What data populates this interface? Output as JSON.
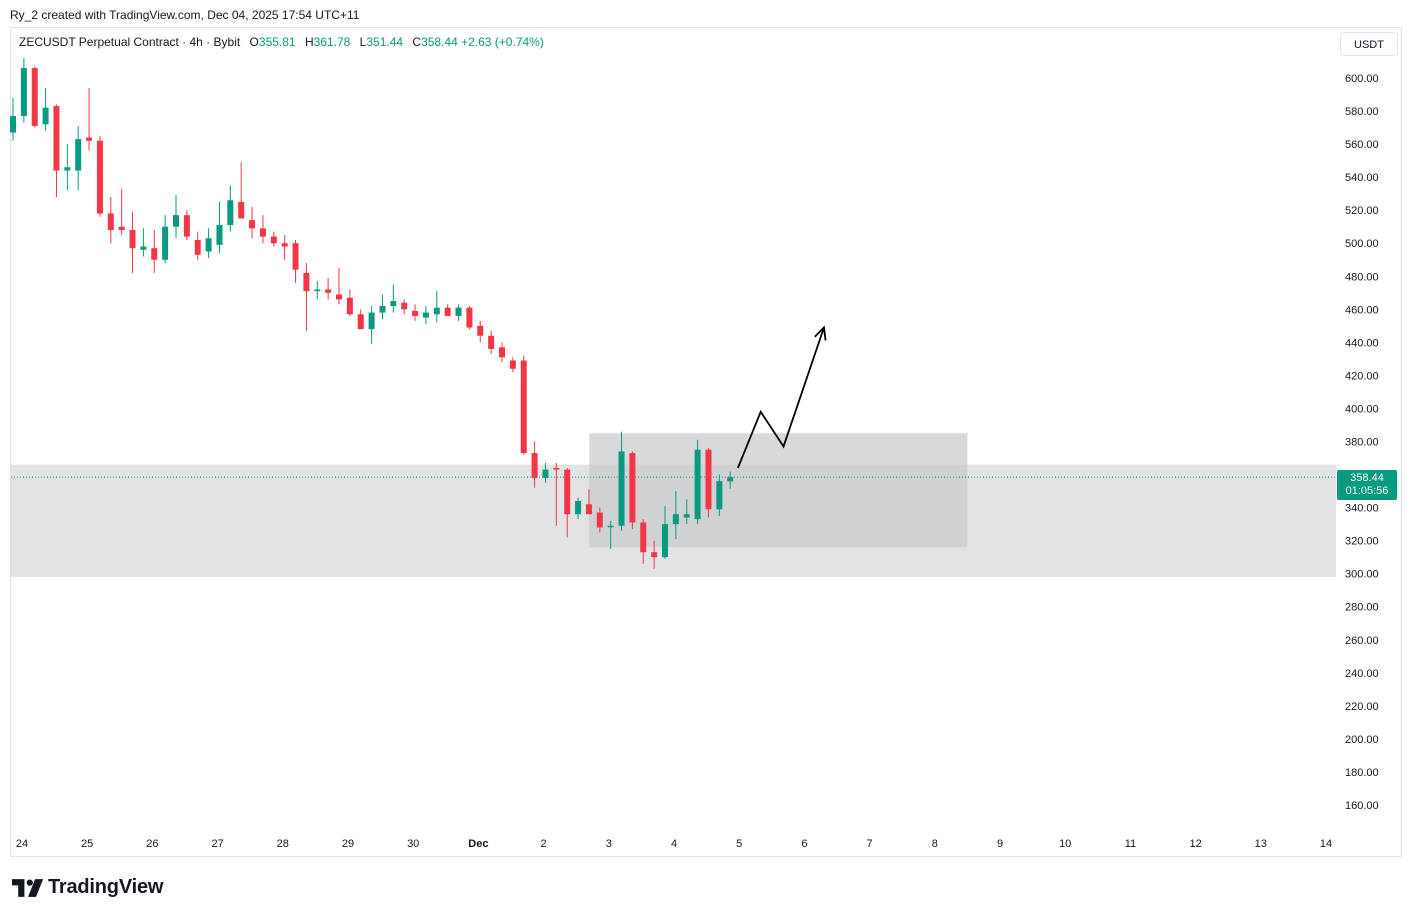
{
  "attribution": "Ry_2 created with TradingView.com, Dec 04, 2025 17:54 UTC+11",
  "brand": "TradingView",
  "legend": {
    "symbol": "ZECUSDT Perpetual Contract · 4h · Bybit",
    "open_label": "O",
    "open": "355.81",
    "high_label": "H",
    "high": "361.78",
    "low_label": "L",
    "low": "351.44",
    "close_label": "C",
    "close": "358.44",
    "change": "+2.63 (+0.74%)"
  },
  "currency": "USDT",
  "last_price": {
    "price": "358.44",
    "countdown": "01:05:56"
  },
  "colors": {
    "up": "#089981",
    "down": "#f23645",
    "zone": "#e2e3e5",
    "box": "#c8c9cc"
  },
  "chart_data": {
    "type": "candlestick",
    "timeframe": "4h",
    "x_ticks": [
      "24",
      "25",
      "26",
      "27",
      "28",
      "29",
      "30",
      "Dec",
      "2",
      "3",
      "4",
      "5",
      "6",
      "7",
      "8",
      "9",
      "10",
      "11",
      "12",
      "13",
      "14"
    ],
    "y_ticks": [
      "160.00",
      "180.00",
      "200.00",
      "220.00",
      "240.00",
      "260.00",
      "280.00",
      "300.00",
      "320.00",
      "340.00",
      "360.00",
      "380.00",
      "400.00",
      "420.00",
      "440.00",
      "460.00",
      "480.00",
      "500.00",
      "520.00",
      "540.00",
      "560.00",
      "580.00",
      "600.00"
    ],
    "ylim": [
      150,
      625
    ],
    "grid": false,
    "last_price": 358.44,
    "candles": [
      {
        "o": 567,
        "h": 588,
        "l": 562,
        "c": 577
      },
      {
        "o": 577,
        "h": 612,
        "l": 573,
        "c": 606
      },
      {
        "o": 606,
        "h": 607,
        "l": 570,
        "c": 571
      },
      {
        "o": 572,
        "h": 594,
        "l": 568,
        "c": 582
      },
      {
        "o": 583,
        "h": 584,
        "l": 528,
        "c": 544
      },
      {
        "o": 544,
        "h": 560,
        "l": 532,
        "c": 546
      },
      {
        "o": 544,
        "h": 571,
        "l": 532,
        "c": 563
      },
      {
        "o": 564,
        "h": 594,
        "l": 556,
        "c": 562
      },
      {
        "o": 562,
        "h": 565,
        "l": 516,
        "c": 518
      },
      {
        "o": 518,
        "h": 528,
        "l": 500,
        "c": 508
      },
      {
        "o": 510,
        "h": 533,
        "l": 505,
        "c": 508
      },
      {
        "o": 508,
        "h": 519,
        "l": 482,
        "c": 497
      },
      {
        "o": 496,
        "h": 509,
        "l": 492,
        "c": 498
      },
      {
        "o": 497,
        "h": 508,
        "l": 482,
        "c": 490
      },
      {
        "o": 490,
        "h": 517,
        "l": 488,
        "c": 510
      },
      {
        "o": 510,
        "h": 529,
        "l": 503,
        "c": 517
      },
      {
        "o": 517,
        "h": 520,
        "l": 502,
        "c": 504
      },
      {
        "o": 502,
        "h": 507,
        "l": 490,
        "c": 493
      },
      {
        "o": 495,
        "h": 509,
        "l": 491,
        "c": 503
      },
      {
        "o": 499,
        "h": 525,
        "l": 494,
        "c": 511
      },
      {
        "o": 511,
        "h": 535,
        "l": 507,
        "c": 526
      },
      {
        "o": 525,
        "h": 549,
        "l": 515,
        "c": 515
      },
      {
        "o": 514,
        "h": 522,
        "l": 503,
        "c": 509
      },
      {
        "o": 509,
        "h": 517,
        "l": 500,
        "c": 504
      },
      {
        "o": 504,
        "h": 507,
        "l": 498,
        "c": 500
      },
      {
        "o": 500,
        "h": 505,
        "l": 490,
        "c": 498
      },
      {
        "o": 500,
        "h": 502,
        "l": 476,
        "c": 484
      },
      {
        "o": 482,
        "h": 488,
        "l": 447,
        "c": 471
      },
      {
        "o": 471,
        "h": 477,
        "l": 466,
        "c": 472
      },
      {
        "o": 472,
        "h": 479,
        "l": 466,
        "c": 470
      },
      {
        "o": 469,
        "h": 485,
        "l": 463,
        "c": 466
      },
      {
        "o": 467,
        "h": 472,
        "l": 456,
        "c": 457
      },
      {
        "o": 457,
        "h": 460,
        "l": 448,
        "c": 448
      },
      {
        "o": 448,
        "h": 462,
        "l": 439,
        "c": 458
      },
      {
        "o": 458,
        "h": 469,
        "l": 454,
        "c": 462
      },
      {
        "o": 462,
        "h": 475,
        "l": 458,
        "c": 465
      },
      {
        "o": 464,
        "h": 466,
        "l": 457,
        "c": 460
      },
      {
        "o": 459,
        "h": 463,
        "l": 453,
        "c": 456
      },
      {
        "o": 455,
        "h": 462,
        "l": 451,
        "c": 458
      },
      {
        "o": 457,
        "h": 471,
        "l": 452,
        "c": 461
      },
      {
        "o": 461,
        "h": 463,
        "l": 456,
        "c": 456
      },
      {
        "o": 456,
        "h": 463,
        "l": 453,
        "c": 461
      },
      {
        "o": 461,
        "h": 462,
        "l": 448,
        "c": 449
      },
      {
        "o": 450,
        "h": 453,
        "l": 440,
        "c": 444
      },
      {
        "o": 444,
        "h": 447,
        "l": 433,
        "c": 436
      },
      {
        "o": 437,
        "h": 440,
        "l": 428,
        "c": 431
      },
      {
        "o": 429,
        "h": 431,
        "l": 422,
        "c": 424
      },
      {
        "o": 429,
        "h": 432,
        "l": 372,
        "c": 373
      },
      {
        "o": 373,
        "h": 380,
        "l": 352,
        "c": 358
      },
      {
        "o": 358,
        "h": 367,
        "l": 355,
        "c": 363
      },
      {
        "o": 364,
        "h": 367,
        "l": 329,
        "c": 363
      },
      {
        "o": 363,
        "h": 364,
        "l": 322,
        "c": 336
      },
      {
        "o": 336,
        "h": 346,
        "l": 333,
        "c": 344
      },
      {
        "o": 342,
        "h": 351,
        "l": 336,
        "c": 336
      },
      {
        "o": 337,
        "h": 340,
        "l": 325,
        "c": 328
      },
      {
        "o": 329,
        "h": 332,
        "l": 315,
        "c": 329
      },
      {
        "o": 329,
        "h": 386,
        "l": 326,
        "c": 374
      },
      {
        "o": 373,
        "h": 374,
        "l": 327,
        "c": 331
      },
      {
        "o": 331,
        "h": 333,
        "l": 306,
        "c": 313
      },
      {
        "o": 313,
        "h": 320,
        "l": 303,
        "c": 310
      },
      {
        "o": 310,
        "h": 341,
        "l": 309,
        "c": 330
      },
      {
        "o": 330,
        "h": 350,
        "l": 321,
        "c": 336
      },
      {
        "o": 334,
        "h": 345,
        "l": 330,
        "c": 336
      },
      {
        "o": 333,
        "h": 381,
        "l": 330,
        "c": 375
      },
      {
        "o": 375,
        "h": 376,
        "l": 334,
        "c": 339
      },
      {
        "o": 339,
        "h": 360,
        "l": 335,
        "c": 356
      },
      {
        "o": 355.81,
        "h": 361.78,
        "l": 351.44,
        "c": 358.44
      }
    ],
    "zones": [
      {
        "from_date": "24",
        "to_date": "14",
        "low": 298,
        "high": 366
      },
      {
        "from_date": "2.7",
        "to_date": "8.5",
        "low": 316,
        "high": 385
      }
    ],
    "annotation_path": [
      {
        "date": 4.98,
        "price": 364
      },
      {
        "date": 5.33,
        "price": 398
      },
      {
        "date": 5.68,
        "price": 377
      },
      {
        "date": 6.3,
        "price": 449
      }
    ]
  }
}
